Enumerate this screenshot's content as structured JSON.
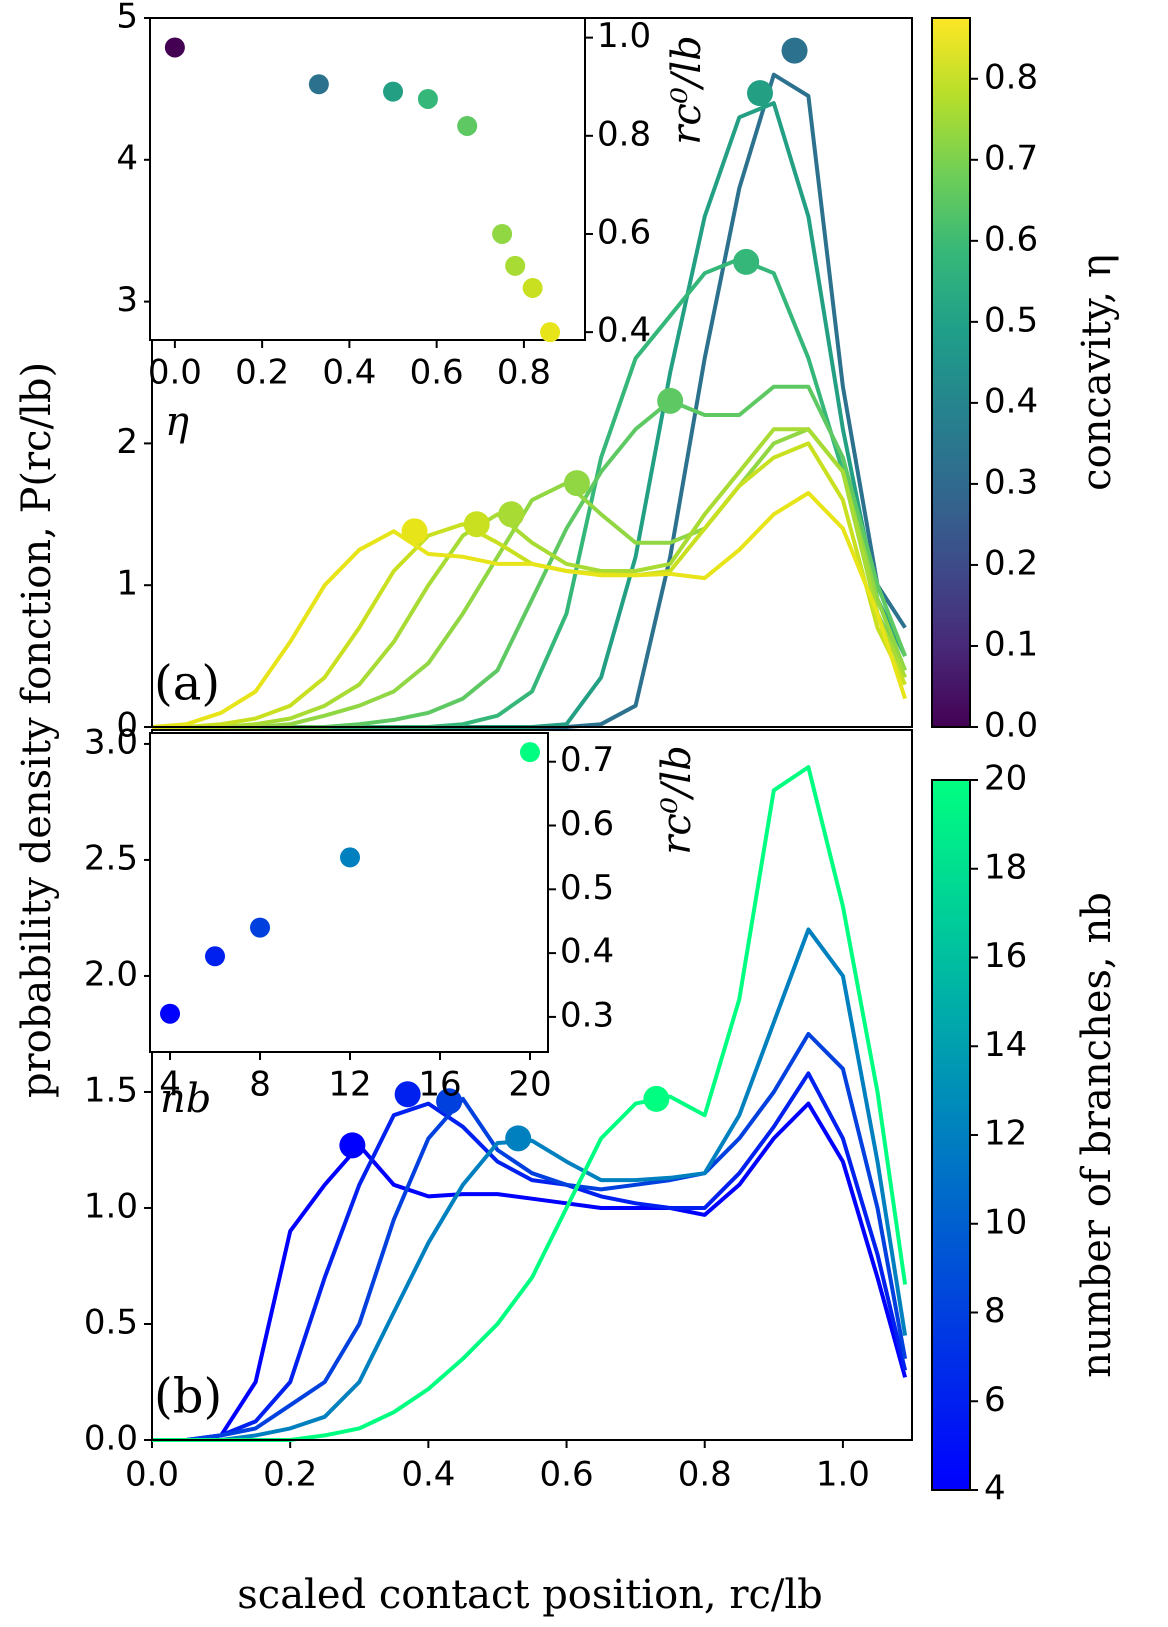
{
  "chart_data": [
    {
      "type": "line",
      "panel_label": "(a)",
      "ylabel": "probability density fonction, P(rc/lb)",
      "x": [
        0,
        0.05,
        0.1,
        0.15,
        0.2,
        0.25,
        0.3,
        0.35,
        0.4,
        0.45,
        0.5,
        0.55,
        0.6,
        0.65,
        0.7,
        0.75,
        0.8,
        0.85,
        0.9,
        0.95,
        1.0,
        1.05,
        1.09
      ],
      "xlim": [
        0,
        1.1
      ],
      "ylim": [
        0,
        5
      ],
      "yticks": [
        0,
        1,
        2,
        3,
        4,
        5
      ],
      "series": [
        {
          "color": "#2c728e",
          "values": [
            0,
            0,
            0,
            0,
            0,
            0,
            0,
            0,
            0,
            0,
            0,
            0,
            0,
            0.02,
            0.15,
            1.2,
            2.6,
            3.8,
            4.6,
            4.45,
            2.4,
            1.0,
            0.7
          ],
          "peak_x": 0.93,
          "peak_y": 4.77
        },
        {
          "color": "#23a083",
          "values": [
            0,
            0,
            0,
            0,
            0,
            0,
            0,
            0,
            0,
            0,
            0,
            0,
            0.02,
            0.35,
            1.2,
            2.5,
            3.6,
            4.3,
            4.4,
            3.6,
            2.1,
            0.9,
            0.5
          ],
          "peak_x": 0.88,
          "peak_y": 4.47
        },
        {
          "color": "#35b779",
          "values": [
            0,
            0,
            0,
            0,
            0,
            0,
            0,
            0,
            0,
            0.02,
            0.08,
            0.25,
            0.8,
            1.9,
            2.6,
            2.9,
            3.2,
            3.3,
            3.2,
            2.6,
            1.8,
            0.8,
            0.4
          ],
          "peak_x": 0.86,
          "peak_y": 3.28
        },
        {
          "color": "#5ec962",
          "values": [
            0,
            0,
            0,
            0,
            0,
            0,
            0.02,
            0.05,
            0.1,
            0.2,
            0.4,
            0.9,
            1.4,
            1.8,
            2.1,
            2.3,
            2.2,
            2.2,
            2.4,
            2.4,
            1.9,
            1.0,
            0.5
          ],
          "peak_x": 0.75,
          "peak_y": 2.3
        },
        {
          "color": "#90d743",
          "values": [
            0,
            0,
            0,
            0,
            0.02,
            0.08,
            0.15,
            0.25,
            0.45,
            0.8,
            1.2,
            1.6,
            1.72,
            1.5,
            1.3,
            1.3,
            1.4,
            1.7,
            2.0,
            2.1,
            1.8,
            0.9,
            0.4
          ],
          "peak_x": 0.615,
          "peak_y": 1.72
        },
        {
          "color": "#a8db34",
          "values": [
            0,
            0,
            0,
            0.02,
            0.06,
            0.15,
            0.3,
            0.6,
            1.0,
            1.35,
            1.5,
            1.3,
            1.15,
            1.1,
            1.1,
            1.15,
            1.5,
            1.8,
            2.1,
            2.1,
            1.8,
            0.8,
            0.35
          ],
          "peak_x": 0.52,
          "peak_y": 1.5
        },
        {
          "color": "#c8e020",
          "values": [
            0,
            0,
            0.02,
            0.06,
            0.15,
            0.35,
            0.7,
            1.1,
            1.35,
            1.43,
            1.3,
            1.15,
            1.1,
            1.08,
            1.07,
            1.1,
            1.4,
            1.7,
            1.9,
            2.0,
            1.6,
            0.7,
            0.3
          ],
          "peak_x": 0.47,
          "peak_y": 1.43
        },
        {
          "color": "#e7e419",
          "values": [
            0,
            0.02,
            0.1,
            0.25,
            0.6,
            1.0,
            1.25,
            1.38,
            1.22,
            1.2,
            1.15,
            1.15,
            1.1,
            1.07,
            1.07,
            1.08,
            1.05,
            1.25,
            1.5,
            1.65,
            1.4,
            0.8,
            0.2
          ],
          "peak_x": 0.38,
          "peak_y": 1.38
        }
      ],
      "inset": {
        "xlabel": "η",
        "ylabel": "rc⁰/lb",
        "x": [
          0,
          0.33,
          0.5,
          0.58,
          0.67,
          0.75,
          0.78,
          0.82,
          0.86
        ],
        "y": [
          0.98,
          0.905,
          0.89,
          0.875,
          0.82,
          0.6,
          0.535,
          0.49,
          0.4
        ],
        "colors": [
          "#440154",
          "#2c728e",
          "#23a083",
          "#35b779",
          "#5ec962",
          "#90d743",
          "#a8db34",
          "#c8e020",
          "#e7e419"
        ],
        "xlim": [
          -0.057,
          0.94
        ],
        "ylim": [
          0.384,
          1.04
        ],
        "xticks": [
          {
            "value": 0,
            "label": "0.0"
          },
          0.2,
          0.4,
          0.6,
          0.8
        ],
        "yticks": [
          0.4,
          0.6,
          0.8,
          {
            "value": 1,
            "label": "1.0"
          }
        ]
      },
      "colorbar": {
        "label": "concavity, η",
        "lim": [
          0,
          0.875
        ],
        "ticks": [
          {
            "value": 0,
            "label": "0.0"
          },
          0.1,
          0.2,
          0.3,
          0.4,
          0.5,
          0.6,
          0.7,
          0.8
        ],
        "colormap": [
          "#440154",
          "#482878",
          "#3e4a89",
          "#31688e",
          "#26828e",
          "#1f9e89",
          "#35b779",
          "#6ece58",
          "#b5de2b",
          "#fde725"
        ]
      }
    },
    {
      "type": "line",
      "panel_label": "(b)",
      "xlabel": "scaled contact position, rc/lb",
      "x": [
        0,
        0.05,
        0.1,
        0.15,
        0.2,
        0.25,
        0.3,
        0.35,
        0.4,
        0.45,
        0.5,
        0.55,
        0.6,
        0.65,
        0.7,
        0.75,
        0.8,
        0.85,
        0.9,
        0.95,
        1.0,
        1.05,
        1.09
      ],
      "xlim": [
        0,
        1.1
      ],
      "ylim": [
        0,
        3.06
      ],
      "xticks": [
        {
          "value": 0,
          "label": "0.0"
        },
        0.2,
        0.4,
        0.6,
        0.8,
        {
          "value": 1,
          "label": "1.0"
        }
      ],
      "yticks": [
        {
          "value": 0,
          "label": "0.0"
        },
        0.5,
        {
          "value": 1,
          "label": "1.0"
        },
        1.5,
        {
          "value": 2,
          "label": "2.0"
        },
        2.5,
        {
          "value": 3,
          "label": "3.0"
        }
      ],
      "series": [
        {
          "color": "#0000ff",
          "values": [
            0,
            0,
            0.02,
            0.25,
            0.9,
            1.1,
            1.27,
            1.1,
            1.05,
            1.06,
            1.06,
            1.04,
            1.02,
            1.0,
            1.0,
            1.0,
            0.97,
            1.1,
            1.3,
            1.45,
            1.2,
            0.7,
            0.27
          ],
          "peak_x": 0.29,
          "peak_y": 1.27
        },
        {
          "color": "#0020ef",
          "values": [
            0,
            0,
            0.02,
            0.08,
            0.25,
            0.7,
            1.1,
            1.4,
            1.45,
            1.35,
            1.2,
            1.12,
            1.1,
            1.05,
            1.02,
            1.0,
            1.0,
            1.15,
            1.35,
            1.58,
            1.3,
            0.8,
            0.3
          ],
          "peak_x": 0.37,
          "peak_y": 1.49
        },
        {
          "color": "#0040df",
          "values": [
            0,
            0,
            0.02,
            0.05,
            0.15,
            0.25,
            0.5,
            0.95,
            1.3,
            1.47,
            1.25,
            1.15,
            1.1,
            1.08,
            1.1,
            1.12,
            1.15,
            1.3,
            1.5,
            1.75,
            1.6,
            1.0,
            0.35
          ],
          "peak_x": 0.43,
          "peak_y": 1.46
        },
        {
          "color": "#0080bf",
          "values": [
            0,
            0,
            0,
            0.02,
            0.05,
            0.1,
            0.25,
            0.55,
            0.85,
            1.1,
            1.28,
            1.29,
            1.2,
            1.12,
            1.12,
            1.13,
            1.15,
            1.4,
            1.8,
            2.2,
            2.0,
            1.2,
            0.45
          ],
          "peak_x": 0.53,
          "peak_y": 1.3
        },
        {
          "color": "#00ff80",
          "values": [
            0,
            0,
            0,
            0,
            0,
            0.02,
            0.05,
            0.12,
            0.22,
            0.35,
            0.5,
            0.7,
            1.0,
            1.3,
            1.45,
            1.48,
            1.4,
            1.9,
            2.8,
            2.9,
            2.3,
            1.5,
            0.67
          ],
          "peak_x": 0.73,
          "peak_y": 1.47
        }
      ],
      "inset": {
        "xlabel": "nb",
        "ylabel": "rc⁰/lb",
        "x": [
          4,
          6,
          8,
          12,
          20
        ],
        "y": [
          0.305,
          0.395,
          0.44,
          0.55,
          0.715
        ],
        "colors": [
          "#0000ff",
          "#0020ef",
          "#0040df",
          "#0080bf",
          "#00ff80"
        ],
        "xlim": [
          3.11,
          20.8
        ],
        "ylim": [
          0.245,
          0.745
        ],
        "xticks": [
          4,
          8,
          12,
          16,
          20
        ],
        "yticks": [
          0.3,
          0.4,
          0.5,
          0.6,
          0.7
        ]
      },
      "colorbar": {
        "label": "number of branches, nb",
        "lim": [
          4,
          20
        ],
        "ticks": [
          4,
          6,
          8,
          10,
          12,
          14,
          16,
          18,
          20
        ],
        "colormap": [
          "#0000ff",
          "#00ff80"
        ]
      }
    }
  ]
}
